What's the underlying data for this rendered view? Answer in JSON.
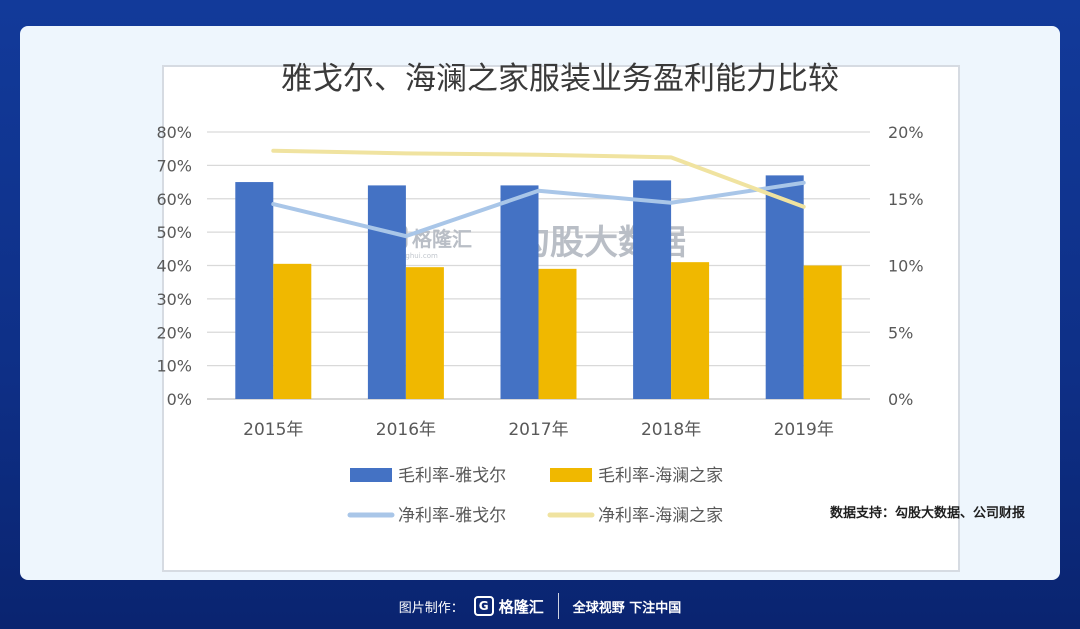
{
  "chart_data": {
    "type": "bar",
    "title": "雅戈尔、海澜之家服装业务盈利能力比较",
    "categories": [
      "2015年",
      "2016年",
      "2017年",
      "2018年",
      "2019年"
    ],
    "y_left": {
      "ticks": [
        "0%",
        "10%",
        "20%",
        "30%",
        "40%",
        "50%",
        "60%",
        "70%",
        "80%"
      ],
      "ylim": [
        0,
        80
      ]
    },
    "y_right": {
      "ticks": [
        "0%",
        "5%",
        "10%",
        "15%",
        "20%"
      ],
      "ylim": [
        0,
        20
      ]
    },
    "grid": true,
    "legend_position": "bottom",
    "series": [
      {
        "name": "毛利率-雅戈尔",
        "type": "bar",
        "axis": "left",
        "color": "#4472c4",
        "values": [
          65,
          64,
          64,
          65.5,
          67
        ]
      },
      {
        "name": "毛利率-海澜之家",
        "type": "bar",
        "axis": "left",
        "color": "#f0b800",
        "values": [
          40.5,
          39.5,
          39,
          41,
          40
        ]
      },
      {
        "name": "净利率-雅戈尔",
        "type": "line",
        "axis": "right",
        "color": "#a9c6e8",
        "values": [
          14.6,
          12.2,
          15.6,
          14.7,
          16.2
        ]
      },
      {
        "name": "净利率-海澜之家",
        "type": "line",
        "axis": "right",
        "color": "#f0e3a0",
        "values": [
          18.6,
          18.4,
          18.3,
          18.1,
          14.4
        ]
      }
    ]
  },
  "watermark": {
    "logo_text": "格隆汇",
    "logo_url": "gelonghui.com",
    "text": "勾股大数据"
  },
  "source_text": "数据支持：勾股大数据、公司财报",
  "footer": {
    "made_by": "图片制作：",
    "logo": "格隆汇",
    "logo_icon": "G",
    "slogan": "全球视野 下注中国"
  }
}
